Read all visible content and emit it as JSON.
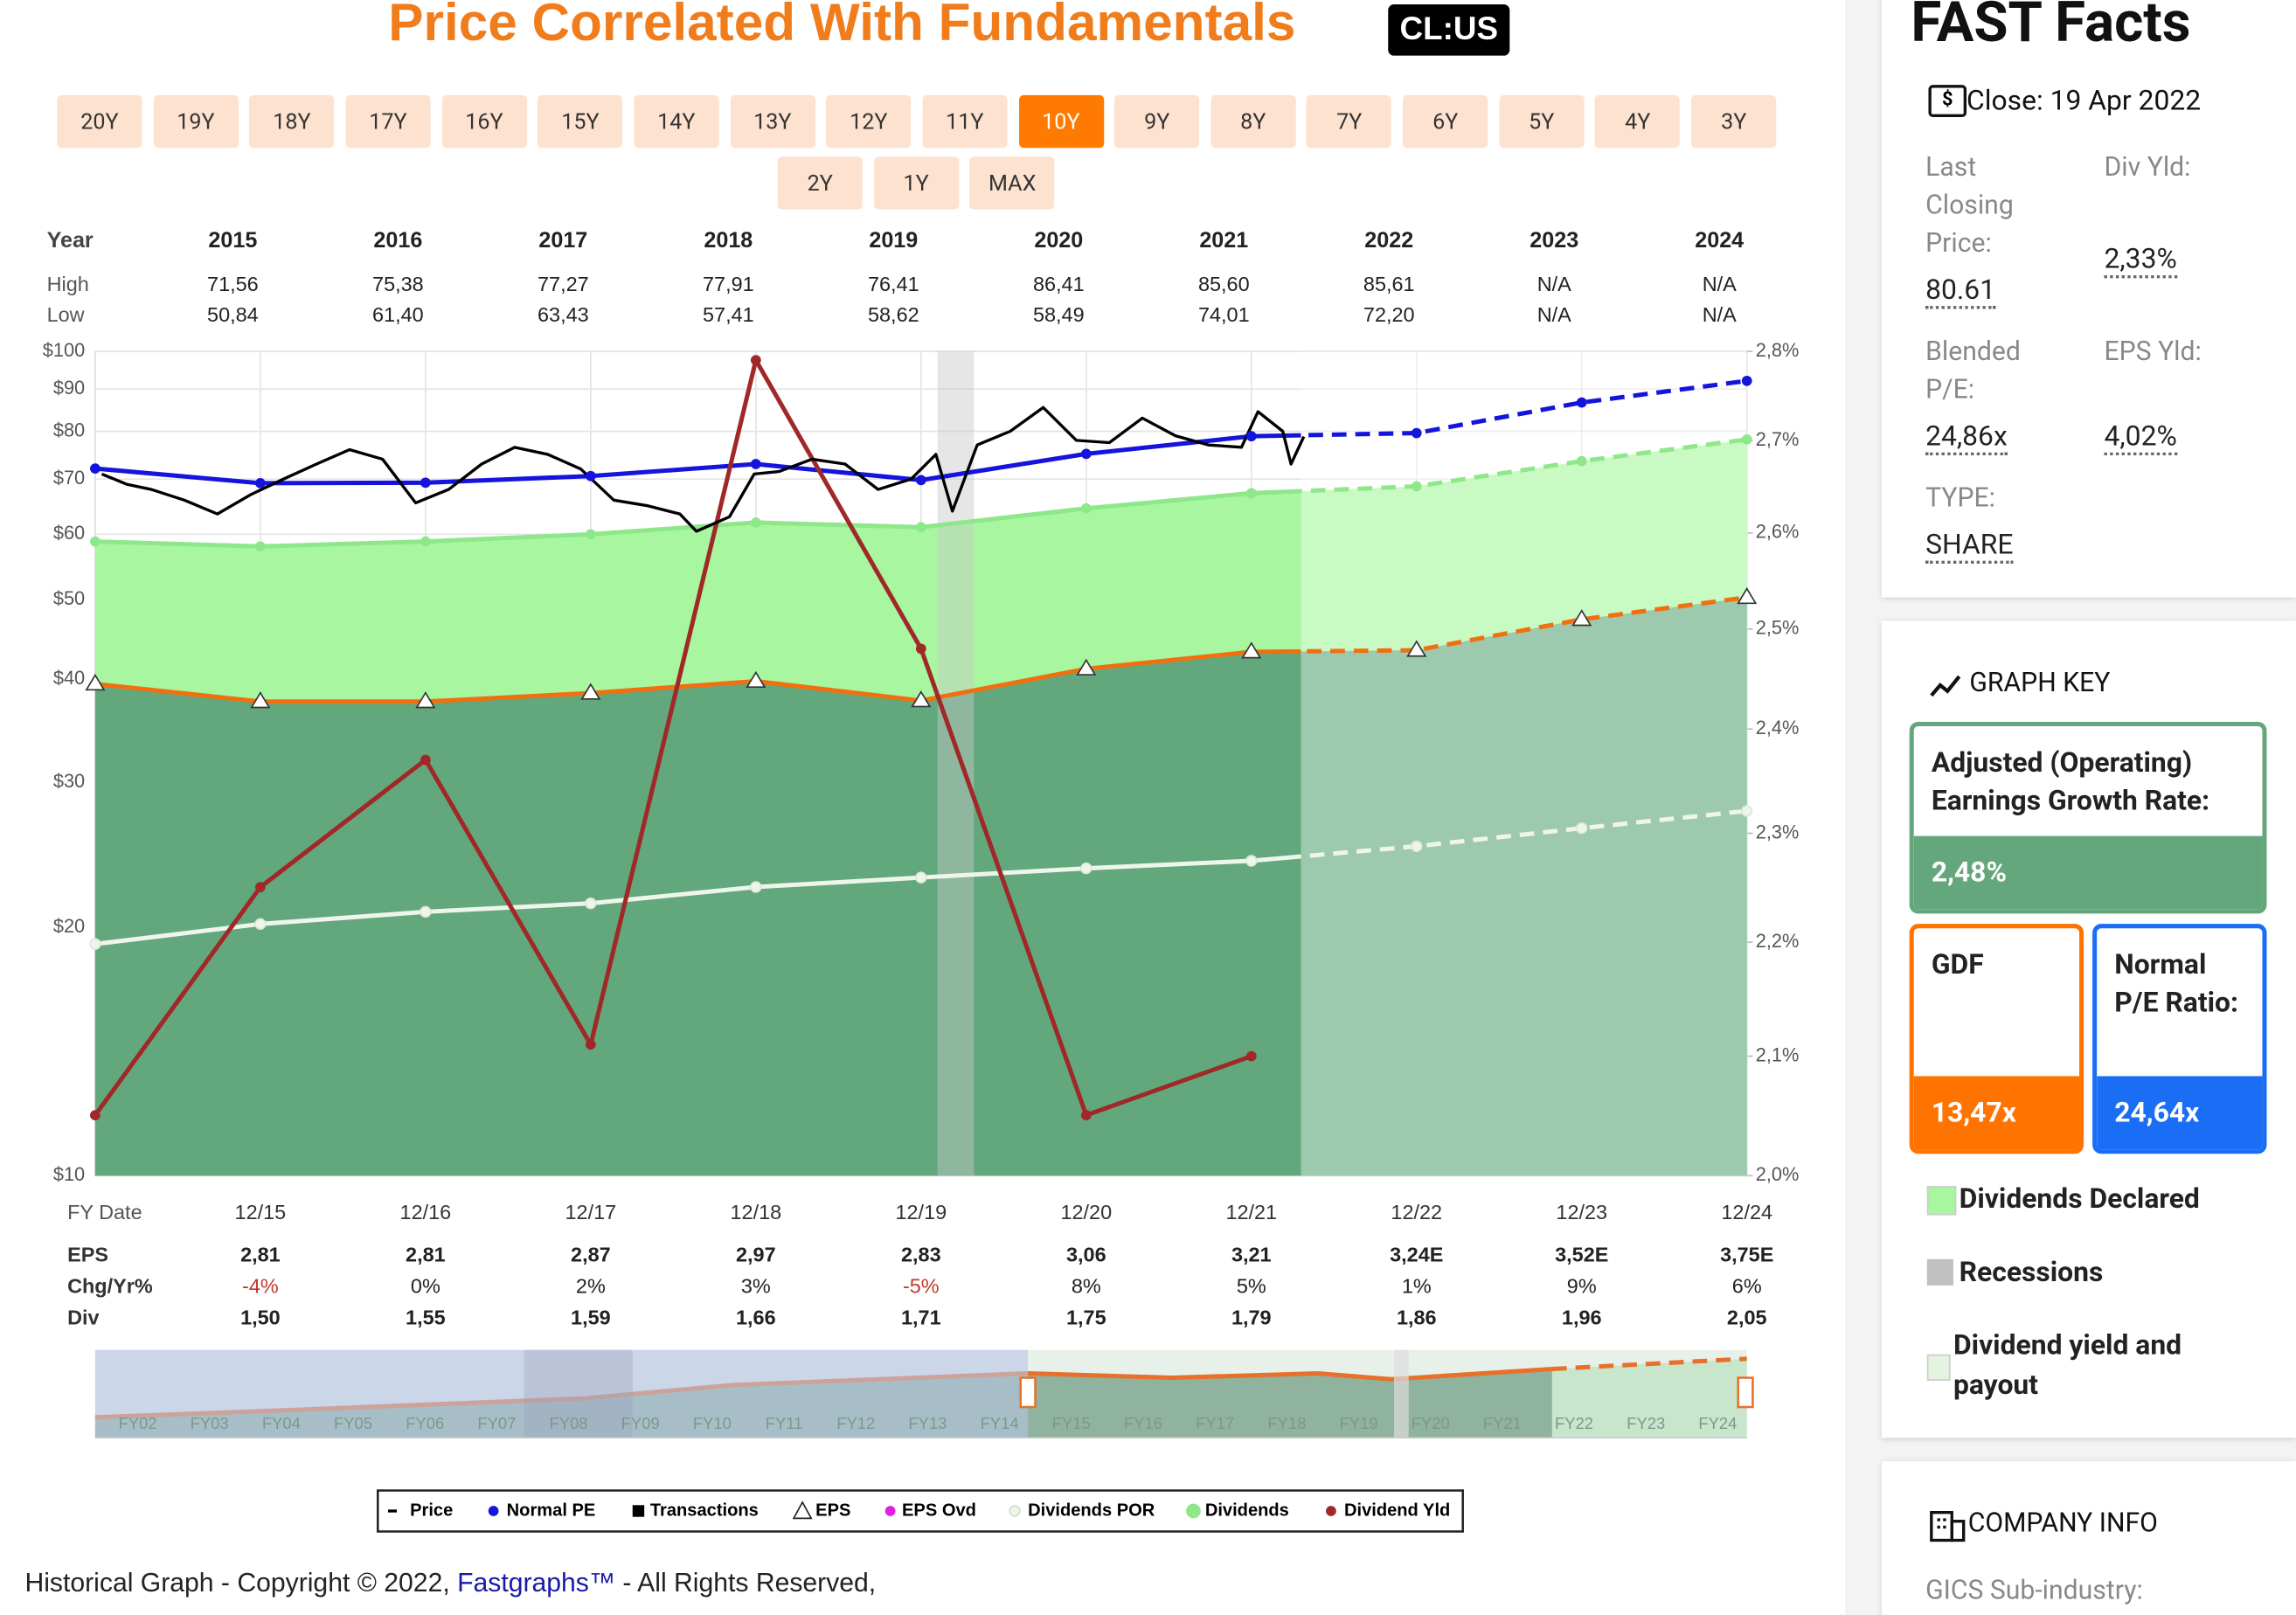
{
  "header": {
    "title": "Price Correlated With Fundamentals",
    "ticker": "CL:US"
  },
  "range_buttons": [
    "20Y",
    "19Y",
    "18Y",
    "17Y",
    "16Y",
    "15Y",
    "14Y",
    "13Y",
    "12Y",
    "11Y",
    "10Y",
    "9Y",
    "8Y",
    "7Y",
    "6Y",
    "5Y",
    "4Y",
    "3Y",
    "2Y",
    "1Y",
    "MAX"
  ],
  "active_button": 10,
  "summary_table": {
    "header": "Year",
    "columns": [
      "2015",
      "2016",
      "2017",
      "2018",
      "2019",
      "2020",
      "2021",
      "2022",
      "2023",
      "2024"
    ],
    "rows": [
      {
        "label": "High",
        "values": [
          "71,56",
          "75,38",
          "77,27",
          "77,91",
          "76,41",
          "86,41",
          "85,60",
          "85,61",
          "N/A",
          "N/A"
        ]
      },
      {
        "label": "Low",
        "values": [
          "50,84",
          "61,40",
          "63,43",
          "57,41",
          "58,62",
          "58,49",
          "74,01",
          "72,20",
          "N/A",
          "N/A"
        ]
      }
    ]
  },
  "chart_data": {
    "type": "line",
    "xlabel": "FY Date",
    "x": [
      2014.96,
      2015.96,
      2016.96,
      2017.96,
      2018.96,
      2019.96,
      2020.96,
      2021.96,
      2022.96,
      2023.96,
      2024.96
    ],
    "xlim": [
      2014.96,
      2024.96
    ],
    "xticks": [
      {
        "value": 2015.96,
        "label": "12/15"
      },
      {
        "value": 2016.96,
        "label": "12/16"
      },
      {
        "value": 2017.96,
        "label": "12/17"
      },
      {
        "value": 2018.96,
        "label": "12/18"
      },
      {
        "value": 2019.96,
        "label": "12/19"
      },
      {
        "value": 2020.96,
        "label": "12/20"
      },
      {
        "value": 2021.96,
        "label": "12/21"
      },
      {
        "value": 2022.96,
        "label": "12/22"
      },
      {
        "value": 2023.96,
        "label": "12/23"
      },
      {
        "value": 2024.96,
        "label": "12/24"
      }
    ],
    "ylim": [
      10,
      100
    ],
    "ylog": true,
    "yticks": [
      {
        "value": 10,
        "label": "$10"
      },
      {
        "value": 20,
        "label": "$20"
      },
      {
        "value": 30,
        "label": "$30"
      },
      {
        "value": 40,
        "label": "$40"
      },
      {
        "value": 50,
        "label": "$50"
      },
      {
        "value": 60,
        "label": "$60"
      },
      {
        "value": 70,
        "label": "$70"
      },
      {
        "value": 80,
        "label": "$80"
      },
      {
        "value": 90,
        "label": "$90"
      },
      {
        "value": 100,
        "label": "$100"
      }
    ],
    "y2lim": [
      2.0,
      2.8
    ],
    "y2log": true,
    "y2ticks": [
      {
        "value": 2.0,
        "label": "2,0%"
      },
      {
        "value": 2.1,
        "label": "2,1%"
      },
      {
        "value": 2.2,
        "label": "2,2%"
      },
      {
        "value": 2.3,
        "label": "2,3%"
      },
      {
        "value": 2.4,
        "label": "2,4%"
      },
      {
        "value": 2.5,
        "label": "2,5%"
      },
      {
        "value": 2.6,
        "label": "2,6%"
      },
      {
        "value": 2.7,
        "label": "2,7%"
      },
      {
        "value": 2.8,
        "label": "2,8%"
      }
    ],
    "grid": true,
    "forecast_start": 2022.26,
    "recessions": [
      [
        2020.06,
        2020.28
      ]
    ],
    "series": [
      {
        "name": "Price",
        "color": "#000000",
        "marker": "line",
        "x": [
          2015.0,
          2015.15,
          2015.3,
          2015.5,
          2015.7,
          2015.9,
          2016.1,
          2016.3,
          2016.5,
          2016.7,
          2016.9,
          2017.1,
          2017.3,
          2017.5,
          2017.7,
          2017.9,
          2018.1,
          2018.3,
          2018.5,
          2018.6,
          2018.8,
          2018.95,
          2019.1,
          2019.3,
          2019.5,
          2019.7,
          2019.9,
          2020.05,
          2020.15,
          2020.3,
          2020.5,
          2020.7,
          2020.9,
          2021.1,
          2021.3,
          2021.5,
          2021.7,
          2021.9,
          2022.0,
          2022.15,
          2022.2,
          2022.3
        ],
        "values": [
          71,
          69,
          68,
          66,
          63.5,
          67,
          70,
          73,
          76,
          74,
          65.5,
          68,
          73,
          76.5,
          75,
          72,
          66,
          65,
          63.5,
          60.5,
          63,
          71,
          71.5,
          74,
          73,
          68,
          70,
          75,
          64,
          77,
          80,
          85.5,
          78,
          77.5,
          83,
          79,
          77,
          76.5,
          84.5,
          80,
          73,
          80.6
        ]
      },
      {
        "name": "Normal PE",
        "color": "#1414dc",
        "marker": "dot",
        "values": [
          72.1,
          69.2,
          69.3,
          70.6,
          73,
          69.8,
          75.1,
          78.9,
          79.6,
          86.7,
          92.1
        ]
      },
      {
        "name": "EPS",
        "color": "#f07010",
        "marker": "triangle",
        "fill": "#62a87c",
        "values": [
          39.5,
          37.6,
          37.6,
          38.5,
          39.8,
          37.7,
          41.2,
          43.2,
          43.4,
          47.3,
          50.3
        ]
      },
      {
        "name": "Dividends",
        "color": "#8ee88a",
        "marker": "dot",
        "fill": "#a8f7a0",
        "values": [
          58.8,
          58,
          58.8,
          60,
          62,
          61.2,
          64.5,
          67.3,
          68.6,
          73.6,
          78.2
        ]
      },
      {
        "name": "Dividends POR",
        "color": "#eef5ea",
        "marker": "dot",
        "values": [
          19.1,
          20.2,
          20.9,
          21.4,
          22.4,
          23,
          23.6,
          24.1,
          25.1,
          26.4,
          27.7
        ]
      },
      {
        "name": "Dividend Yld",
        "color": "#a02828",
        "marker": "dot",
        "axis": "y2",
        "values": [
          2.05,
          2.25,
          2.37,
          2.11,
          2.79,
          2.48,
          2.05,
          2.1,
          null,
          null,
          null
        ]
      }
    ],
    "legend_extra": [
      {
        "name": "Transactions",
        "color": "#000000",
        "marker": "square"
      },
      {
        "name": "EPS Ovd",
        "color": "#e020e0",
        "marker": "dot"
      }
    ]
  },
  "fundamentals_table": {
    "negative_color": "#c0392b",
    "rows": [
      {
        "label": "EPS",
        "values": [
          "2,81",
          "2,81",
          "2,87",
          "2,97",
          "2,83",
          "3,06",
          "3,21",
          "3,24E",
          "3,52E",
          "3,75E"
        ]
      },
      {
        "label": "Chg/Yr%",
        "values": [
          "-4%",
          "0%",
          "2%",
          "3%",
          "-5%",
          "8%",
          "5%",
          "1%",
          "9%",
          "6%"
        ]
      },
      {
        "label": "Div",
        "values": [
          "1,50",
          "1,55",
          "1,59",
          "1,66",
          "1,71",
          "1,75",
          "1,79",
          "1,86",
          "1,96",
          "2,05"
        ]
      }
    ]
  },
  "navigator": {
    "labels": [
      "FY02",
      "FY03",
      "FY04",
      "FY05",
      "FY06",
      "FY07",
      "FY08",
      "FY09",
      "FY10",
      "FY11",
      "FY12",
      "FY13",
      "FY14",
      "FY15",
      "FY16",
      "FY17",
      "FY18",
      "FY19",
      "FY20",
      "FY21",
      "FY22",
      "FY23",
      "FY24"
    ]
  },
  "footer": {
    "text": "Historical Graph - Copyright © 2022,",
    "link": "Fastgraphs™",
    "rights": "- All Rights Reserved,"
  },
  "sidebar": {
    "facts_title": "FAST Facts",
    "close": "Close: 19 Apr 2022",
    "last_price_label": "Last Closing Price:",
    "last_price": "80.61",
    "div_yld_label": "Div Yld:",
    "div_yld": "2,33%",
    "blended_pe_label": "Blended P/E:",
    "blended_pe": "24,86x",
    "eps_yld_label": "EPS Yld:",
    "eps_yld": "4,02%",
    "type_label": "TYPE:",
    "type": "SHARE",
    "graph_key_title": "GRAPH KEY",
    "growth_label": "Adjusted (Operating) Earnings Growth Rate:",
    "growth": "2,48%",
    "gdf_label": "GDF",
    "gdf": "13,47x",
    "normal_pe_label": "Normal P/E Ratio:",
    "normal_pe": "24,64x",
    "key_dividends": "Dividends Declared",
    "key_recessions": "Recessions",
    "key_yield": "Dividend yield and payout",
    "company_title": "COMPANY INFO",
    "gics_label": "GICS Sub-industry:"
  }
}
